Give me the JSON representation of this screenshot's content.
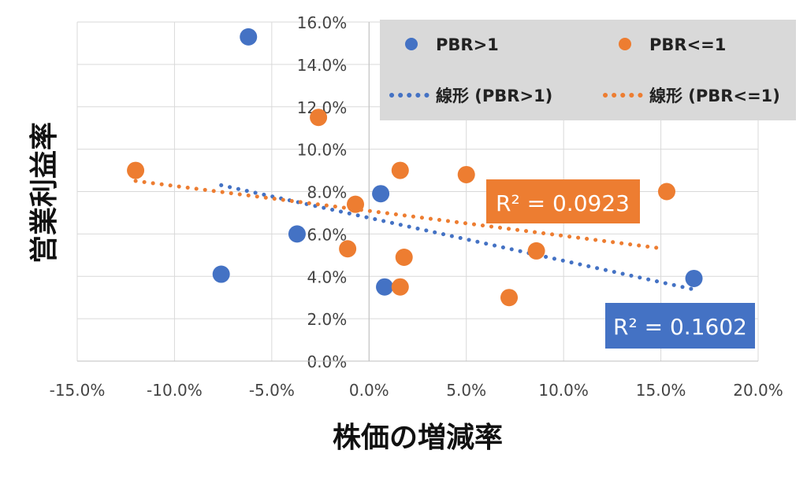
{
  "chart_data": {
    "type": "scatter",
    "title": "",
    "xlabel": "株価の増減率",
    "ylabel": "営業利益率",
    "xlim": [
      -15,
      20
    ],
    "ylim": [
      0,
      16
    ],
    "x_ticks": [
      -15,
      -10,
      -5,
      0,
      5,
      10,
      15,
      20
    ],
    "y_ticks": [
      0,
      2,
      4,
      6,
      8,
      10,
      12,
      14,
      16
    ],
    "x_tick_labels": [
      "-15.0%",
      "-10.0%",
      "-5.0%",
      "0.0%",
      "5.0%",
      "10.0%",
      "15.0%",
      "20.0%"
    ],
    "y_tick_labels": [
      "0.0%",
      "2.0%",
      "4.0%",
      "6.0%",
      "8.0%",
      "10.0%",
      "12.0%",
      "14.0%",
      "16.0%"
    ],
    "grid": true,
    "legend_placement": "top-right",
    "series": [
      {
        "name": "PBR>1",
        "color": "#4472C4",
        "points": [
          [
            -6.2,
            15.3
          ],
          [
            -7.6,
            4.1
          ],
          [
            -3.7,
            6.0
          ],
          [
            0.6,
            7.9
          ],
          [
            0.8,
            3.5
          ],
          [
            16.7,
            3.9
          ]
        ],
        "trendline": {
          "name": "線形 (PBR>1)",
          "from": [
            -7.6,
            8.3
          ],
          "to": [
            16.6,
            3.4
          ],
          "r2_label": "R² = 0.1602"
        }
      },
      {
        "name": "PBR<=1",
        "color": "#ED7D31",
        "points": [
          [
            -12.0,
            9.0
          ],
          [
            -2.6,
            11.5
          ],
          [
            -0.7,
            7.4
          ],
          [
            -1.1,
            5.3
          ],
          [
            1.6,
            9.0
          ],
          [
            1.6,
            3.5
          ],
          [
            1.8,
            4.9
          ],
          [
            5.0,
            8.8
          ],
          [
            7.2,
            3.0
          ],
          [
            8.6,
            5.2
          ],
          [
            15.3,
            8.0
          ]
        ],
        "trendline": {
          "name": "線形 (PBR<=1)",
          "from": [
            -12.0,
            8.5
          ],
          "to": [
            15.2,
            5.3
          ],
          "r2_label": "R² = 0.0923"
        }
      }
    ]
  }
}
